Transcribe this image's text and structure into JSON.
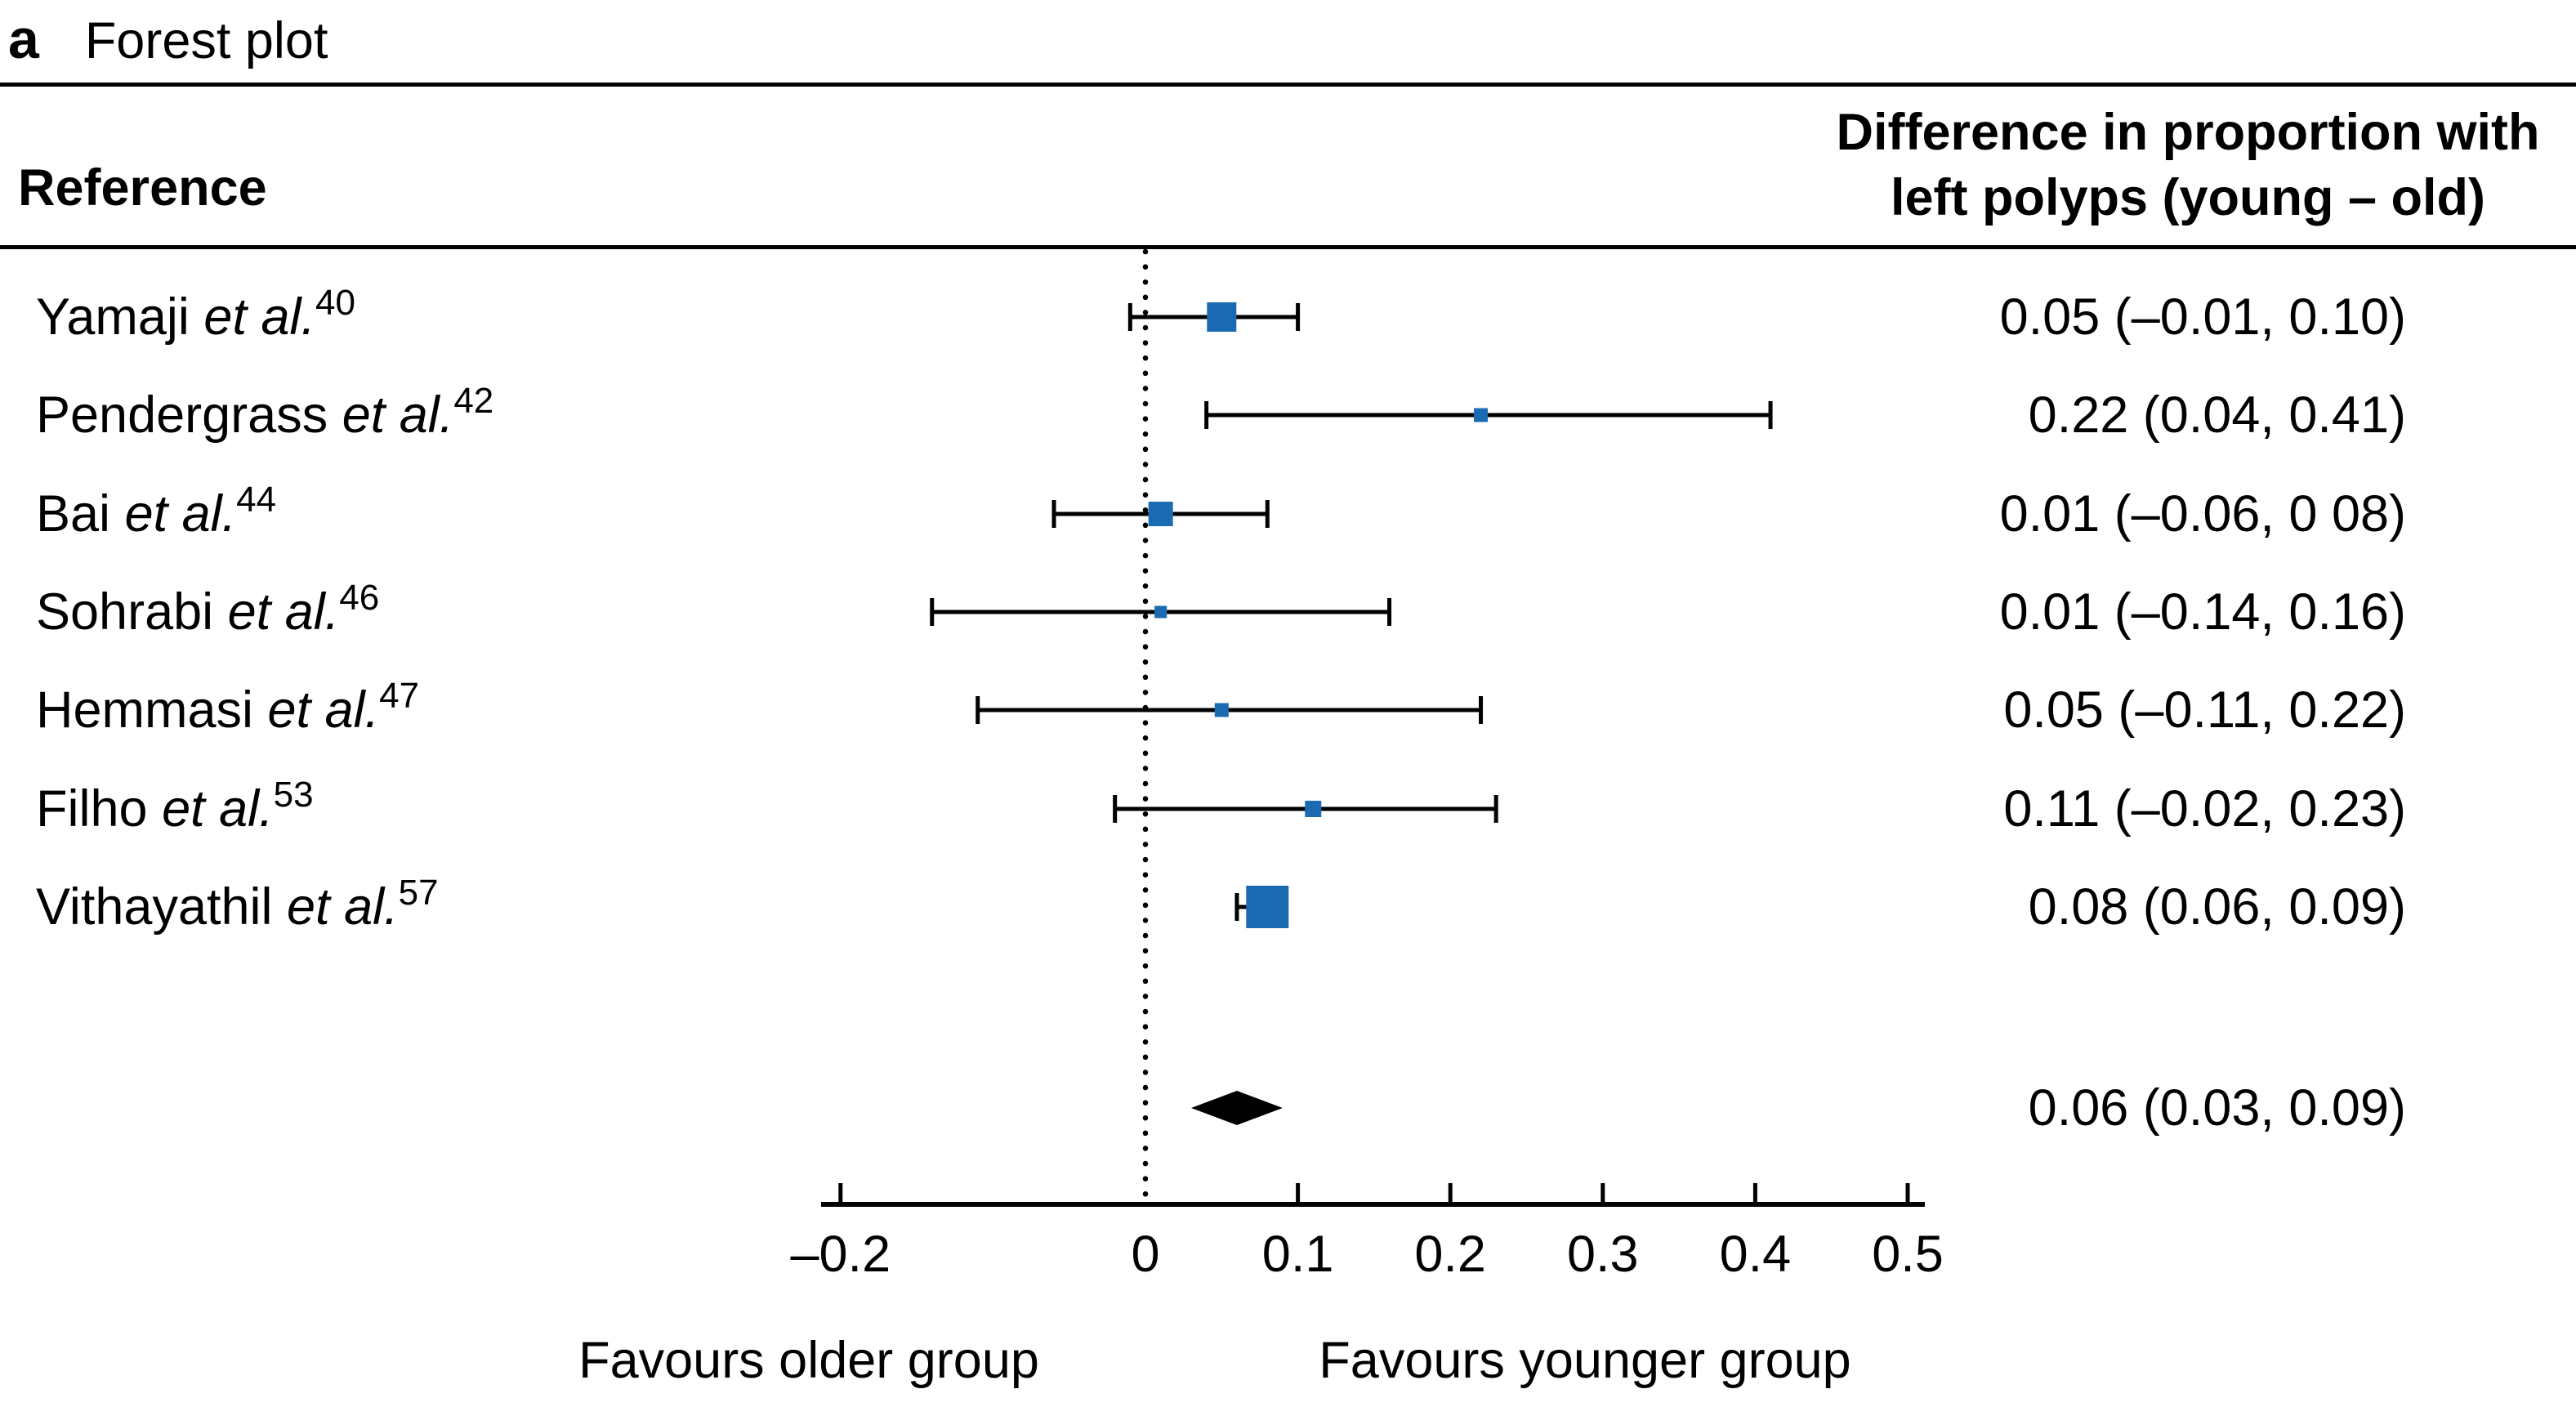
{
  "panel": {
    "label": "a",
    "title": "Forest plot"
  },
  "header": {
    "reference": "Reference",
    "value_line1": "Difference in proportion with",
    "value_line2": "left polyps (young – old)"
  },
  "colors": {
    "marker_blue": "#1b6bb2",
    "line_black": "#000000"
  },
  "chart_data": {
    "type": "forest",
    "title": "Forest plot",
    "x_axis": {
      "ticks": [
        -0.2,
        0,
        0.1,
        0.2,
        0.3,
        0.4,
        0.5
      ],
      "tick_labels": [
        "–0.2",
        "0",
        "0.1",
        "0.2",
        "0.3",
        "0.4",
        "0.5"
      ],
      "zero_reference_line": 0,
      "xlim": [
        -0.21,
        0.51
      ],
      "grid": false
    },
    "studies": [
      {
        "author": "Yamaji",
        "etal": "et al.",
        "ref_num": "40",
        "estimate": 0.05,
        "ci_low": -0.01,
        "ci_high": 0.1,
        "value_text": "0.05 (–0.01, 0.10)",
        "marker_px": 36
      },
      {
        "author": "Pendergrass",
        "etal": "et al.",
        "ref_num": "42",
        "estimate": 0.22,
        "ci_low": 0.04,
        "ci_high": 0.41,
        "value_text": "0.22 (0.04, 0.41)",
        "marker_px": 17
      },
      {
        "author": "Bai",
        "etal": "et al.",
        "ref_num": "44",
        "estimate": 0.01,
        "ci_low": -0.06,
        "ci_high": 0.08,
        "value_text": "0.01 (–0.06, 0 08)",
        "marker_px": 30
      },
      {
        "author": "Sohrabi",
        "etal": "et al.",
        "ref_num": "46",
        "estimate": 0.01,
        "ci_low": -0.14,
        "ci_high": 0.16,
        "value_text": "0.01 (–0.14, 0.16)",
        "marker_px": 15
      },
      {
        "author": "Hemmasi",
        "etal": "et al.",
        "ref_num": "47",
        "estimate": 0.05,
        "ci_low": -0.11,
        "ci_high": 0.22,
        "value_text": "0.05 (–0.11, 0.22)",
        "marker_px": 17
      },
      {
        "author": "Filho",
        "etal": "et al.",
        "ref_num": "53",
        "estimate": 0.11,
        "ci_low": -0.02,
        "ci_high": 0.23,
        "value_text": "0.11 (–0.02, 0.23)",
        "marker_px": 20
      },
      {
        "author": "Vithayathil",
        "etal": "et al.",
        "ref_num": "57",
        "estimate": 0.08,
        "ci_low": 0.06,
        "ci_high": 0.09,
        "value_text": "0.08 (0.06, 0.09)",
        "marker_px": 52
      }
    ],
    "summary": {
      "estimate": 0.06,
      "ci_low": 0.03,
      "ci_high": 0.09,
      "value_text": "0.06 (0.03, 0.09)"
    },
    "footer": {
      "left_label": "Favours older group",
      "right_label": "Favours younger group"
    }
  }
}
